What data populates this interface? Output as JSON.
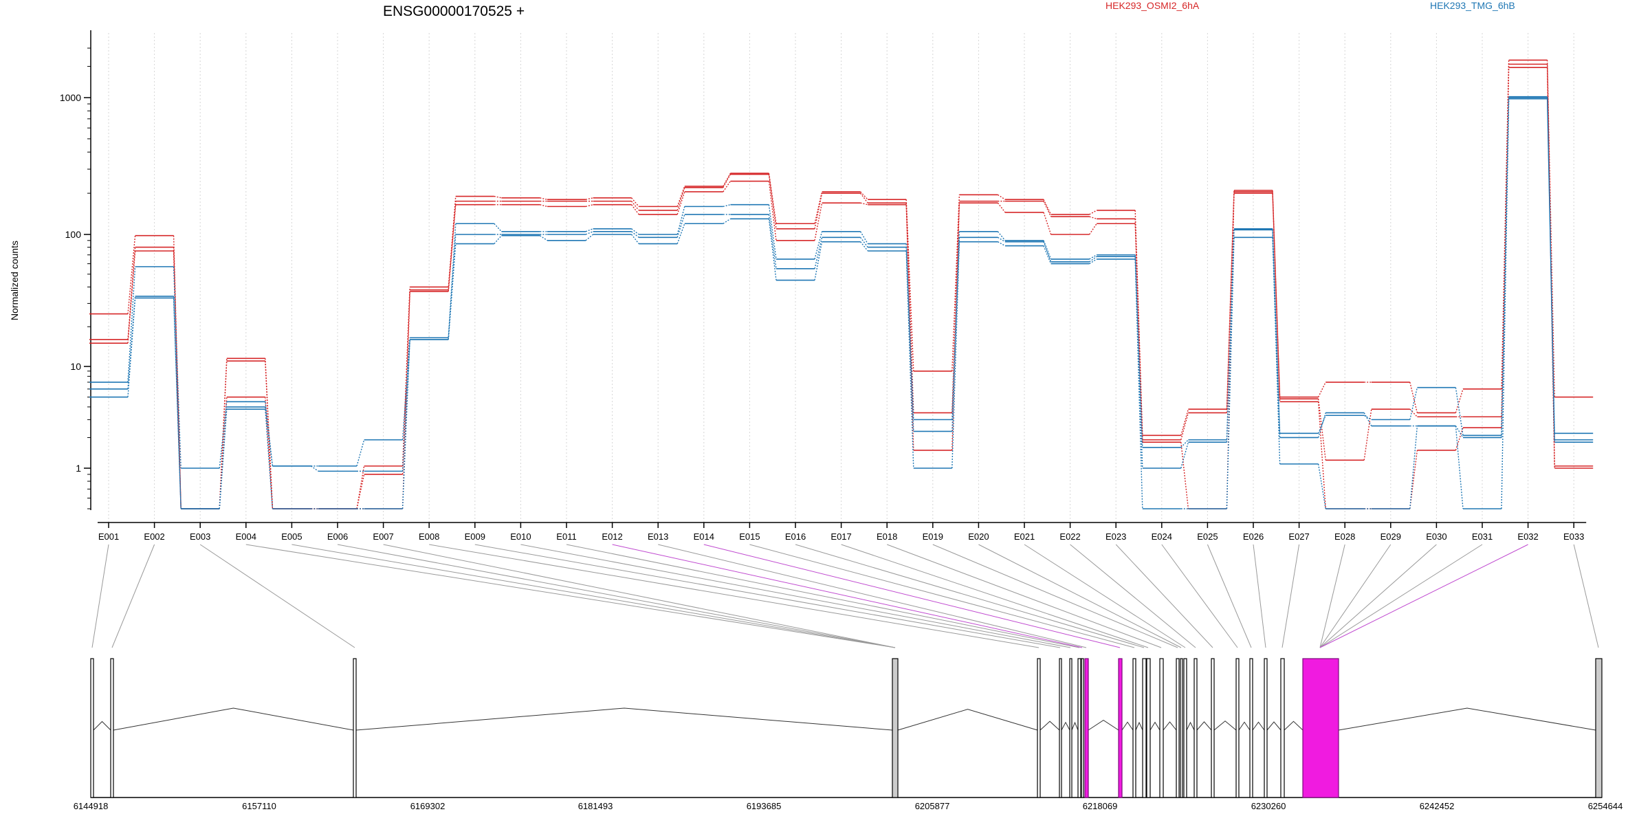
{
  "chart_data": {
    "type": "line",
    "title": "ENSG00000170525 +",
    "xlabel": "",
    "ylabel": "Normalized counts",
    "y_scale": "log",
    "ylim": [
      0.5,
      3000
    ],
    "y_ticks": [
      1,
      10,
      100,
      1000
    ],
    "y_tick_labels": [
      "1",
      "10",
      "100",
      "1000"
    ],
    "grid": "vertical dotted at exon centers",
    "legend_position": "top",
    "categories": [
      "E001",
      "E002",
      "E003",
      "E004",
      "E005",
      "E006",
      "E007",
      "E008",
      "E009",
      "E010",
      "E011",
      "E012",
      "E013",
      "E014",
      "E015",
      "E016",
      "E017",
      "E018",
      "E019",
      "E020",
      "E021",
      "E022",
      "E023",
      "E024",
      "E025",
      "E026",
      "E027",
      "E028",
      "E029",
      "E030",
      "E031",
      "E032",
      "E033"
    ],
    "groups": [
      {
        "name": "HEK293_OSMI2_6hA",
        "color": "#d62728"
      },
      {
        "name": "HEK293_TMG_6hB",
        "color": "#1f77b4"
      }
    ],
    "series": [
      {
        "group": "HEK293_OSMI2_6hA",
        "values": [
          25,
          98,
          0.5,
          11.5,
          0.5,
          0.5,
          1.05,
          40,
          190,
          185,
          180,
          185,
          160,
          225,
          280,
          120,
          205,
          180,
          9,
          195,
          180,
          140,
          150,
          2.1,
          3.8,
          210,
          5,
          7,
          7,
          3.5,
          6,
          2300,
          5
        ]
      },
      {
        "group": "HEK293_OSMI2_6hA",
        "values": [
          16,
          80,
          0.5,
          11,
          0.5,
          0.5,
          0.9,
          38,
          175,
          175,
          175,
          175,
          150,
          220,
          275,
          110,
          200,
          170,
          3.5,
          175,
          175,
          135,
          130,
          1.9,
          3.5,
          205,
          4.8,
          1.2,
          3.8,
          3.2,
          3.2,
          2100,
          1.05
        ]
      },
      {
        "group": "HEK293_OSMI2_6hA",
        "values": [
          15,
          75,
          0.5,
          5,
          0.5,
          0.5,
          0.5,
          37,
          165,
          165,
          160,
          165,
          140,
          205,
          245,
          90,
          170,
          165,
          1.5,
          170,
          145,
          100,
          120,
          1.8,
          0.5,
          200,
          4.5,
          0.5,
          0.5,
          1.5,
          2.5,
          1950,
          1.0
        ]
      },
      {
        "group": "HEK293_TMG_6hB",
        "values": [
          7,
          57,
          1,
          4.5,
          1.05,
          1.05,
          1.9,
          16.5,
          120,
          105,
          105,
          110,
          100,
          160,
          165,
          65,
          105,
          85,
          3,
          105,
          90,
          65,
          70,
          1.6,
          1.9,
          110,
          2.2,
          3.3,
          3,
          6.2,
          2.1,
          1020,
          2.2
        ]
      },
      {
        "group": "HEK293_TMG_6hB",
        "values": [
          6,
          34,
          0.5,
          4,
          1.05,
          0.95,
          0.95,
          16,
          100,
          100,
          100,
          105,
          95,
          140,
          140,
          55,
          95,
          80,
          2.3,
          95,
          88,
          62,
          68,
          1.0,
          1.8,
          108,
          2,
          3.5,
          2.6,
          2.6,
          2,
          1000,
          1.9
        ]
      },
      {
        "group": "HEK293_TMG_6hB",
        "values": [
          5,
          33,
          0.5,
          3.8,
          0.5,
          0.5,
          0.5,
          16,
          85,
          98,
          90,
          100,
          85,
          120,
          130,
          45,
          88,
          75,
          1.0,
          88,
          82,
          60,
          65,
          0.5,
          0.5,
          95,
          1.1,
          0.5,
          0.5,
          2.6,
          0.5,
          980,
          1.8
        ]
      }
    ],
    "gene_model": {
      "coord_ticks": [
        "6144918",
        "6157110",
        "6169302",
        "6181493",
        "6193685",
        "6205877",
        "6218069",
        "6230260",
        "6242452",
        "6254644"
      ]
    }
  }
}
